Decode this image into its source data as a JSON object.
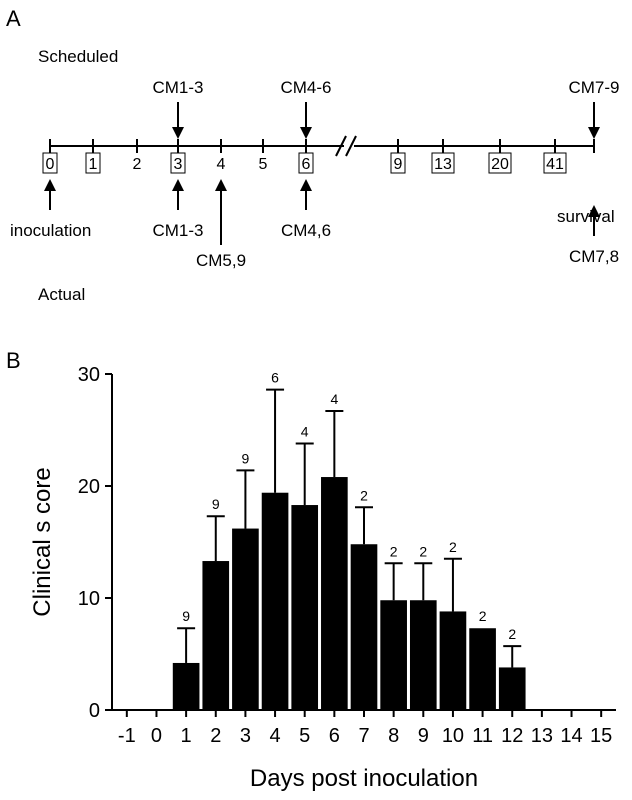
{
  "panel_a": {
    "label": "A",
    "scheduled_label": "Scheduled",
    "actual_label": "Actual",
    "days": [
      "0",
      "1",
      "2",
      "3",
      "4",
      "5",
      "6",
      "9",
      "13",
      "20",
      "41"
    ],
    "boxed_days": [
      "0",
      "1",
      "3",
      "6",
      "9",
      "13",
      "20",
      "41"
    ],
    "scheduled_events": [
      {
        "label": "CM1-3",
        "day": "3"
      },
      {
        "label": "CM4-6",
        "day": "6"
      },
      {
        "label": "CM7-9",
        "day": "end"
      }
    ],
    "actual_events": [
      {
        "label": "inoculation",
        "day": "0"
      },
      {
        "label": "CM1-3",
        "day": "3"
      },
      {
        "label": "CM5,9",
        "day": "4"
      },
      {
        "label": "CM4,6",
        "day": "6"
      },
      {
        "label": "CM7,8",
        "day": "end"
      }
    ],
    "survival_label": "survival"
  },
  "panel_b": {
    "label": "B"
  },
  "chart_data": {
    "type": "bar",
    "title": "",
    "xlabel": "Days post inoculation",
    "ylabel": "Clinical s core",
    "ylim": [
      0,
      30
    ],
    "yticks": [
      0,
      10,
      20,
      30
    ],
    "categories": [
      "-1",
      "0",
      "1",
      "2",
      "3",
      "4",
      "5",
      "6",
      "7",
      "8",
      "9",
      "10",
      "11",
      "12",
      "13",
      "14",
      "15"
    ],
    "values": [
      0,
      0,
      4.2,
      13.3,
      16.2,
      19.4,
      18.3,
      20.8,
      14.8,
      9.8,
      9.8,
      8.8,
      7.3,
      3.8,
      0,
      0,
      0
    ],
    "error_upper": [
      null,
      null,
      7.3,
      17.3,
      21.4,
      28.6,
      23.8,
      26.7,
      18.1,
      13.1,
      13.1,
      13.5,
      null,
      5.7,
      null,
      null,
      null
    ],
    "n_labels": [
      "",
      "",
      "9",
      "9",
      "9",
      "6",
      "4",
      "4",
      "2",
      "2",
      "2",
      "2",
      "2",
      "2",
      "",
      "",
      ""
    ],
    "legend": "none",
    "grid": false,
    "bar_color": "#000000"
  }
}
